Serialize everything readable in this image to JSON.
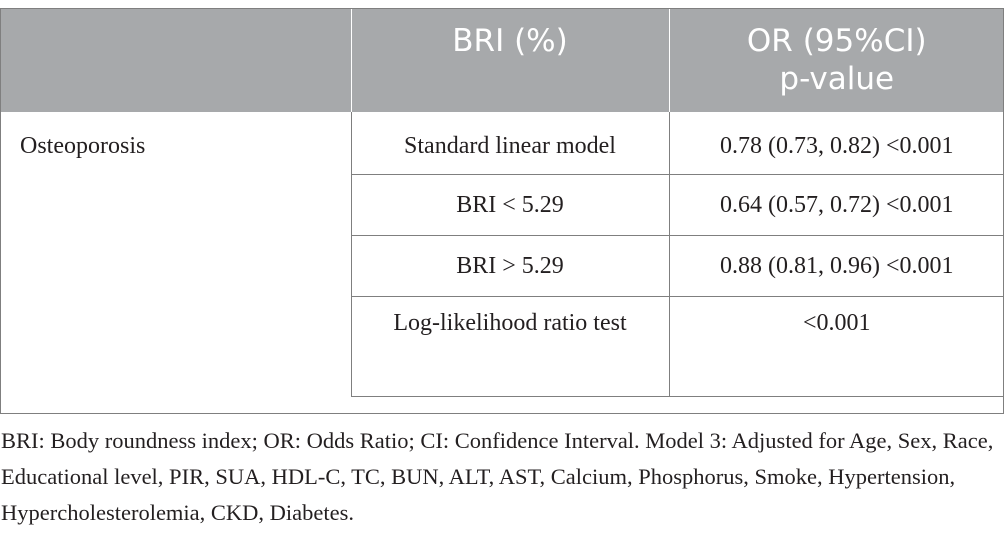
{
  "table": {
    "headers": [
      "",
      "BRI (%)",
      "OR (95%CI)\np-value"
    ],
    "outcome_label": "Osteoporosis",
    "rows": [
      {
        "model": "Standard linear model",
        "value": "0.78 (0.73, 0.82) <0.001"
      },
      {
        "model": "BRI < 5.29",
        "value": "0.64 (0.57, 0.72) <0.001"
      },
      {
        "model": "BRI > 5.29",
        "value": "0.88 (0.81, 0.96) <0.001"
      },
      {
        "model": "Log-likelihood ratio test",
        "value": "<0.001"
      }
    ]
  },
  "footnote": "BRI: Body roundness index; OR: Odds Ratio; CI: Confidence Interval. Model 3: Adjusted for Age, Sex, Race, Educational level, PIR, SUA, HDL-C, TC, BUN, ALT, AST, Calcium, Phosphorus, Smoke, Hypertension, Hypercholesterolemia, CKD, Diabetes."
}
